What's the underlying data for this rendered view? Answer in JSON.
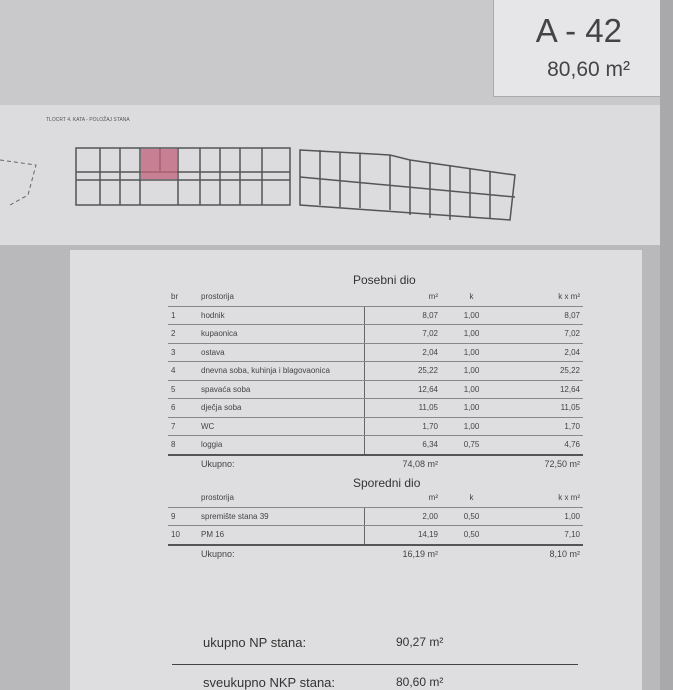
{
  "header": {
    "code": "A - 42",
    "area": "80,60 m²"
  },
  "plan": {
    "label": "TLOCRT 4. KATA - POLOŽAJ STANA",
    "highlight_color": "#c0607a"
  },
  "posebni": {
    "title": "Posebni dio",
    "headers": {
      "br": "br",
      "name": "prostorija",
      "m2": "m²",
      "k": "k",
      "km2": "k x m²"
    },
    "rows": [
      {
        "br": "1",
        "name": "hodnik",
        "m2": "8,07",
        "k": "1,00",
        "km2": "8,07"
      },
      {
        "br": "2",
        "name": "kupaonica",
        "m2": "7,02",
        "k": "1,00",
        "km2": "7,02"
      },
      {
        "br": "3",
        "name": "ostava",
        "m2": "2,04",
        "k": "1,00",
        "km2": "2,04"
      },
      {
        "br": "4",
        "name": "dnevna soba, kuhinja i blagovaonica",
        "m2": "25,22",
        "k": "1,00",
        "km2": "25,22"
      },
      {
        "br": "5",
        "name": "spavaća soba",
        "m2": "12,64",
        "k": "1,00",
        "km2": "12,64"
      },
      {
        "br": "6",
        "name": "dječja soba",
        "m2": "11,05",
        "k": "1,00",
        "km2": "11,05"
      },
      {
        "br": "7",
        "name": "WC",
        "m2": "1,70",
        "k": "1,00",
        "km2": "1,70"
      },
      {
        "br": "8",
        "name": "loggia",
        "m2": "6,34",
        "k": "0,75",
        "km2": "4,76"
      }
    ],
    "total_label": "Ukupno:",
    "total_m2": "74,08 m²",
    "total_km2": "72,50 m²"
  },
  "sporedni": {
    "title": "Sporedni dio",
    "headers": {
      "name": "prostorija",
      "m2": "m²",
      "k": "k",
      "km2": "k x m²"
    },
    "rows": [
      {
        "br": "9",
        "name": "spremište stana 39",
        "m2": "2,00",
        "k": "0,50",
        "km2": "1,00"
      },
      {
        "br": "10",
        "name": "PM 16",
        "m2": "14,19",
        "k": "0,50",
        "km2": "7,10"
      }
    ],
    "total_label": "Ukupno:",
    "total_m2": "16,19 m²",
    "total_km2": "8,10 m²"
  },
  "summary": {
    "np_label": "ukupno NP stana:",
    "np_value": "90,27 m²",
    "nkp_label": "sveukupno NKP stana:",
    "nkp_value": "80,60 m²"
  }
}
